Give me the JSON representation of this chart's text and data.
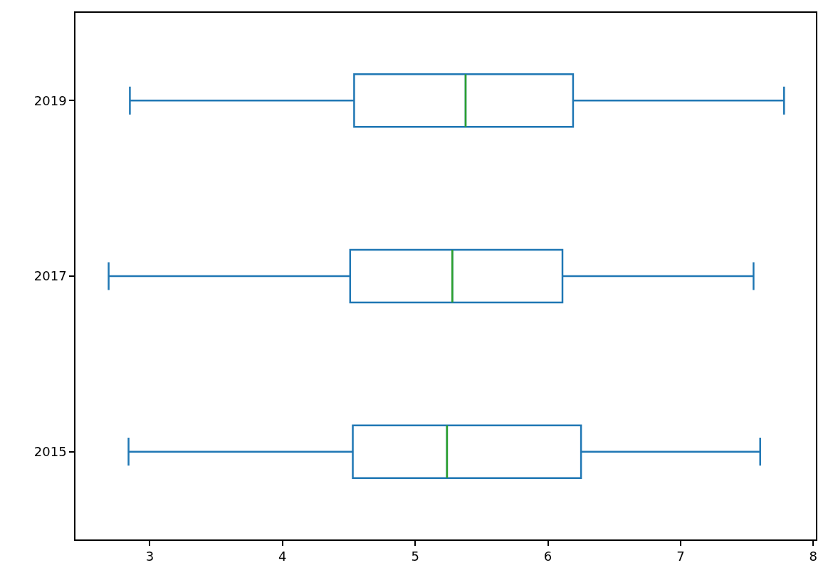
{
  "chart_data": {
    "type": "box",
    "orientation": "horizontal",
    "categories": [
      "2019",
      "2017",
      "2015"
    ],
    "color": "#1f77b4",
    "boxes": [
      {
        "low": 2.85,
        "q1": 4.54,
        "median": 5.38,
        "q3": 6.19,
        "high": 7.78
      },
      {
        "low": 2.69,
        "q1": 4.51,
        "median": 5.28,
        "q3": 6.11,
        "high": 7.55
      },
      {
        "low": 2.84,
        "q1": 4.53,
        "median": 5.24,
        "q3": 6.25,
        "high": 7.6
      }
    ],
    "xlim": [
      2.44,
      8.02
    ],
    "xticks": [
      3,
      4,
      5,
      6,
      7,
      8
    ],
    "grid": false,
    "legend": false
  }
}
